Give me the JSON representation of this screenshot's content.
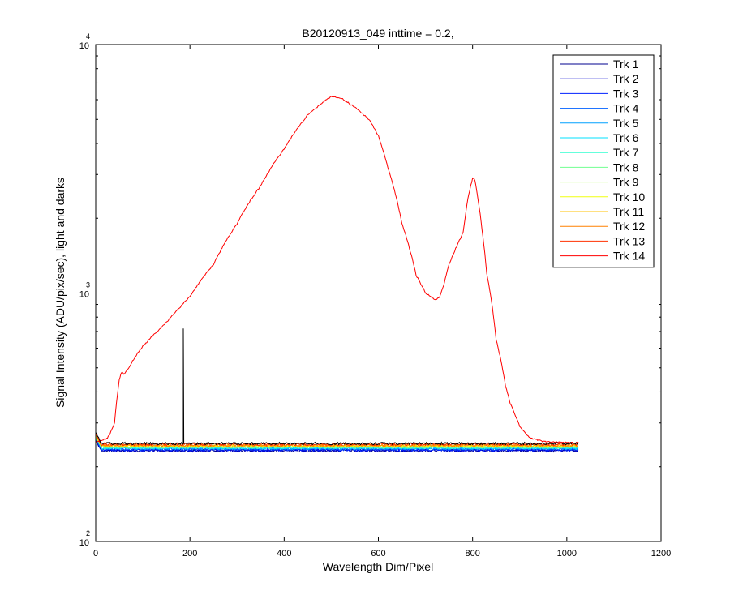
{
  "chart_data": {
    "type": "line",
    "title": "B20120913_049 inttime = 0.2,",
    "xlabel": "Wavelength Dim/Pixel",
    "ylabel": "Signal Intensity (ADU/pix/sec), light and darks",
    "xlim": [
      0,
      1200
    ],
    "ylim": [
      100,
      10000
    ],
    "yscale": "log",
    "grid": false,
    "legend_position": "top-right",
    "x_ticks": [
      "0",
      "200",
      "400",
      "600",
      "800",
      "1000",
      "1200"
    ],
    "y_ticks": [
      {
        "base": "10",
        "exp": "2"
      },
      {
        "base": "10",
        "exp": "3"
      },
      {
        "base": "10",
        "exp": "4"
      }
    ],
    "series": [
      {
        "name": "Trk 1",
        "color": "#00008F",
        "level": 232
      },
      {
        "name": "Trk 2",
        "color": "#0000D0",
        "level": 233
      },
      {
        "name": "Trk 3",
        "color": "#0020FF",
        "level": 234
      },
      {
        "name": "Trk 4",
        "color": "#0060FF",
        "level": 236
      },
      {
        "name": "Trk 5",
        "color": "#00A0FF",
        "level": 237
      },
      {
        "name": "Trk 6",
        "color": "#00E0FF",
        "level": 238
      },
      {
        "name": "Trk 7",
        "color": "#30FFD0",
        "level": 239
      },
      {
        "name": "Trk 8",
        "color": "#70FF90",
        "level": 240
      },
      {
        "name": "Trk 9",
        "color": "#B0FF50",
        "level": 241
      },
      {
        "name": "Trk 10",
        "color": "#F0FF10",
        "level": 242
      },
      {
        "name": "Trk 11",
        "color": "#FFC000",
        "level": 243
      },
      {
        "name": "Trk 12",
        "color": "#FF8000",
        "level": 244
      },
      {
        "name": "Trk 13",
        "color": "#FF3000",
        "level": 246
      },
      {
        "name": "Trk 14",
        "color": "#FF0000",
        "x": [
          0,
          5,
          10,
          15,
          20,
          25,
          30,
          40,
          50,
          55,
          60,
          70,
          80,
          100,
          120,
          150,
          180,
          200,
          250,
          300,
          350,
          400,
          450,
          500,
          520,
          550,
          580,
          600,
          620,
          650,
          680,
          700,
          720,
          730,
          740,
          750,
          760,
          780,
          790,
          800,
          805,
          810,
          820,
          830,
          850,
          870,
          880,
          900,
          920,
          940,
          960,
          1000,
          1025
        ],
        "values": [
          250,
          253,
          255,
          256,
          258,
          262,
          270,
          300,
          450,
          480,
          470,
          500,
          540,
          610,
          670,
          760,
          880,
          970,
          1300,
          1900,
          2700,
          3800,
          5200,
          6200,
          6100,
          5600,
          5000,
          4300,
          3200,
          1900,
          1180,
          1000,
          940,
          960,
          1100,
          1300,
          1450,
          1750,
          2400,
          2900,
          2850,
          2500,
          1800,
          1200,
          650,
          420,
          360,
          290,
          262,
          255,
          252,
          250,
          250
        ]
      },
      {
        "name": "",
        "color": "#000000",
        "level": 248,
        "spikes": [
          {
            "x": 186,
            "y": 720
          },
          {
            "x": 1023,
            "y": 310
          }
        ]
      }
    ]
  }
}
